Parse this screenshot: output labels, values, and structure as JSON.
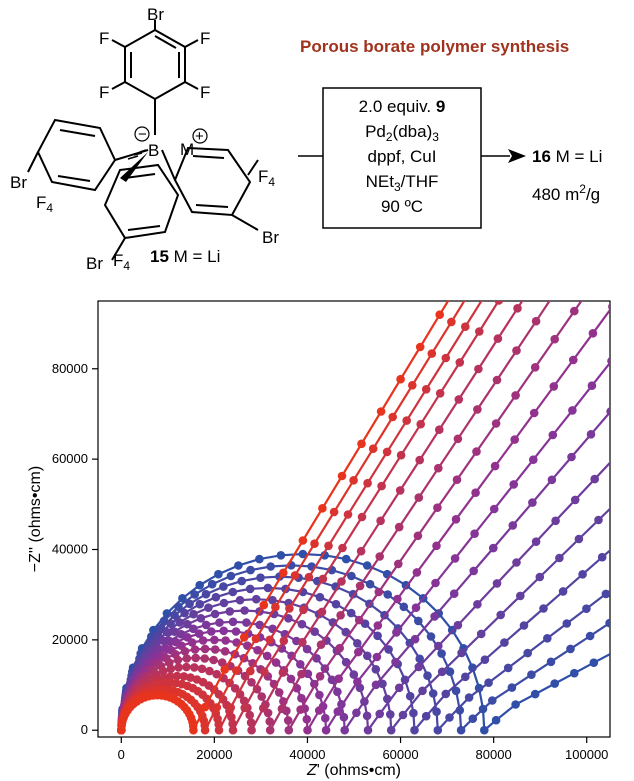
{
  "scheme": {
    "title": "Porous borate polymer synthesis",
    "atoms": {
      "br": "Br",
      "f": "F",
      "b": "B",
      "m": "M",
      "minus": "−",
      "plus": "+",
      "f4": "F",
      "f4_sub": "4"
    },
    "reactant_num": "15",
    "reactant_suffix": " M = Li",
    "conditions": {
      "line1_pre": "2.0 equiv. ",
      "line1_bold": "9",
      "line2_pre": "Pd",
      "line2_sub1": "2",
      "line2_mid": "(dba)",
      "line2_sub2": "3",
      "line3": "dppf, CuI",
      "line4_pre": "NEt",
      "line4_sub": "3",
      "line4_post": "/THF",
      "line5": "90 ºC"
    },
    "product_num": "16",
    "product_suffix": " M = Li",
    "surface_area_pre": "480 m",
    "surface_area_sup": "2",
    "surface_area_post": "/g"
  },
  "colors": {
    "title": "#a0321e",
    "series_start": "#2f4fa8",
    "series_end": "#e8341c"
  },
  "chart_data": {
    "type": "scatter",
    "xlabel_italic": "Z",
    "xlabel_rest": "' (ohms•cm)",
    "ylabel": "−Z'' (ohms•cm)",
    "xlim": [
      -5000,
      105000
    ],
    "ylim": [
      -1500,
      95000
    ],
    "xticks": [
      "0",
      "20000",
      "40000",
      "60000",
      "80000",
      "100000"
    ],
    "yticks": [
      "0",
      "20000",
      "40000",
      "60000",
      "80000"
    ],
    "series_count": 16,
    "series": [
      {
        "R": 78000,
        "slope": 0.55
      },
      {
        "R": 73000,
        "slope": 0.68
      },
      {
        "R": 68000,
        "slope": 0.78
      },
      {
        "R": 63000,
        "slope": 0.9
      },
      {
        "R": 58000,
        "slope": 1.0
      },
      {
        "R": 53000,
        "slope": 1.1
      },
      {
        "R": 48000,
        "slope": 1.2
      },
      {
        "R": 44000,
        "slope": 1.3
      },
      {
        "R": 40000,
        "slope": 1.4
      },
      {
        "R": 36000,
        "slope": 1.48
      },
      {
        "R": 32000,
        "slope": 1.55
      },
      {
        "R": 28000,
        "slope": 1.6
      },
      {
        "R": 24000,
        "slope": 1.63
      },
      {
        "R": 21000,
        "slope": 1.65
      },
      {
        "R": 18000,
        "slope": 1.67
      },
      {
        "R": 15500,
        "slope": 1.7
      }
    ]
  }
}
